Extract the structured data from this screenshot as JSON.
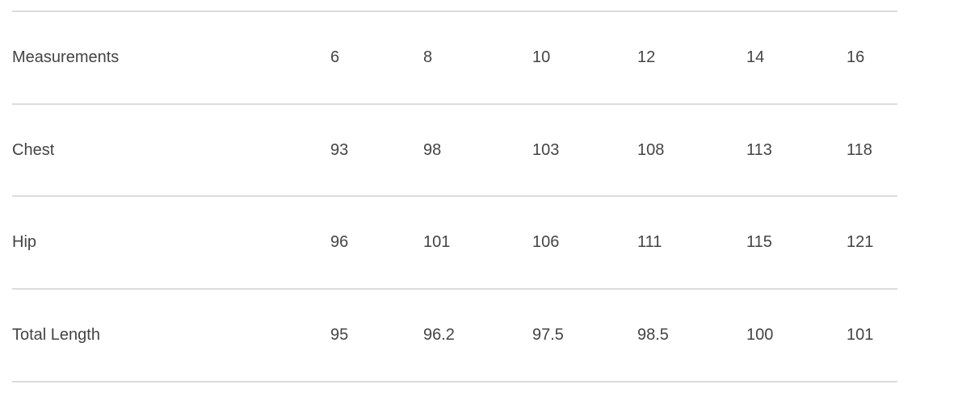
{
  "table": {
    "header": [
      "Measurements",
      "6",
      "8",
      "10",
      "12",
      "14",
      "16"
    ],
    "rows": [
      [
        "Chest",
        "93",
        "98",
        "103",
        "108",
        "113",
        "118"
      ],
      [
        "Hip",
        "96",
        "101",
        "106",
        "111",
        "115",
        "121"
      ],
      [
        "Total Length",
        "95",
        "96.2",
        "97.5",
        "98.5",
        "100",
        "101"
      ]
    ]
  }
}
